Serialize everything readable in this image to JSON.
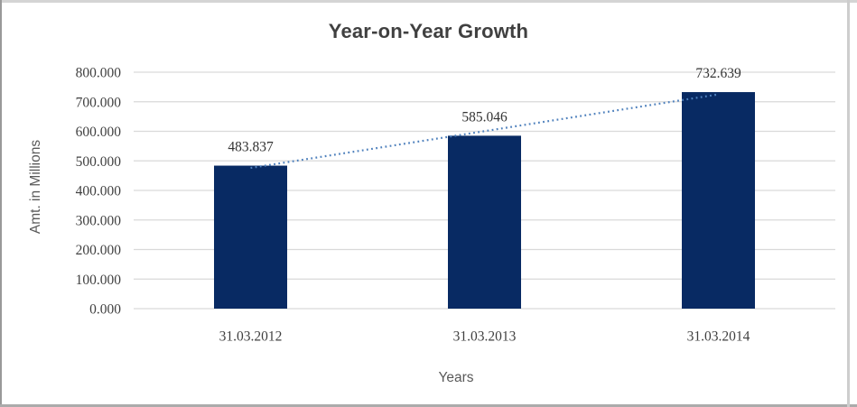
{
  "chart_data": {
    "type": "bar",
    "title": "Year-on-Year Growth",
    "xlabel": "Years",
    "ylabel": "Amt. in Millions",
    "categories": [
      "31.03.2012",
      "31.03.2013",
      "31.03.2014"
    ],
    "values": [
      483.837,
      585.046,
      732.639
    ],
    "data_labels": [
      "483.837",
      "585.046",
      "732.639"
    ],
    "ylim": [
      0,
      800
    ],
    "yticks": {
      "values": [
        0,
        100,
        200,
        300,
        400,
        500,
        600,
        700,
        800
      ],
      "labels": [
        "0.000",
        "100.000",
        "200.000",
        "300.000",
        "400.000",
        "500.000",
        "600.000",
        "700.000",
        "800.000"
      ]
    },
    "grid": true,
    "legend": "none",
    "trendline": {
      "type": "linear",
      "style": "dotted"
    },
    "colors": {
      "bar": "#082a63",
      "trendline": "#4f81bd",
      "gridline": "#d9d9d9",
      "tick_text": "#3f3f3f",
      "data_label_text": "#333333",
      "axis_title_text": "#595959",
      "title_text": "#404040",
      "background": "#ffffff"
    }
  },
  "frame": {
    "border_top": "#d4d4d4",
    "border_left": "#999999",
    "border_bottom": "#ababab",
    "border_right": "#cdcdcd"
  }
}
